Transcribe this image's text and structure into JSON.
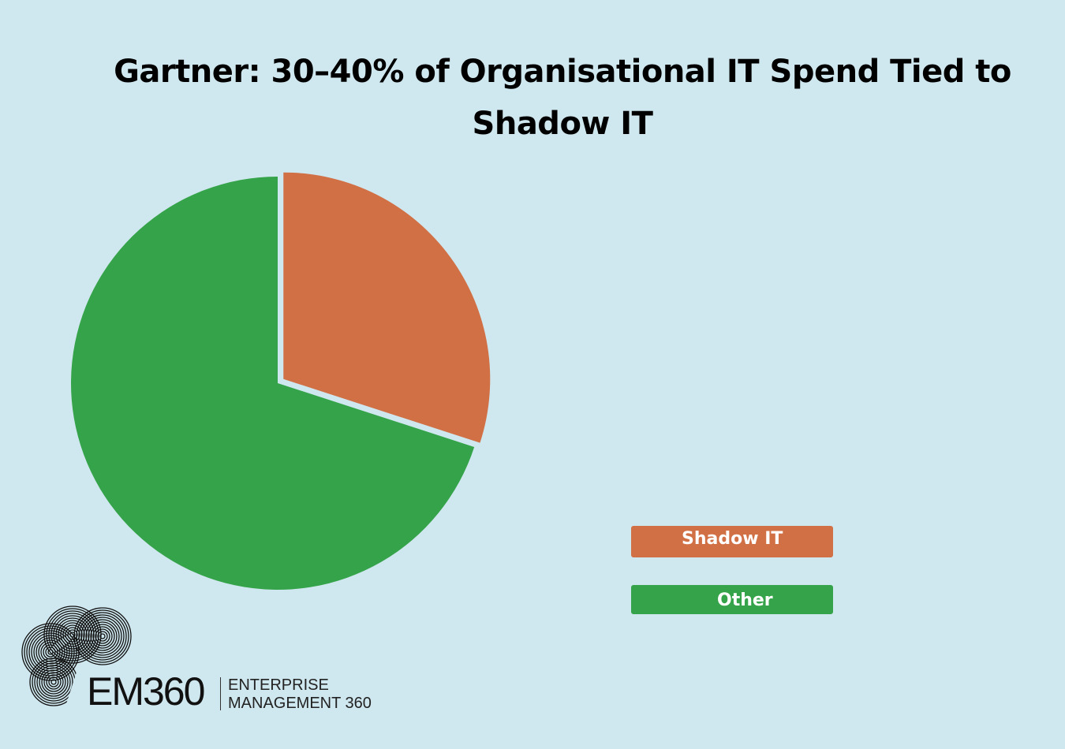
{
  "colors": {
    "background": "#cfe7ee",
    "shadow_it": "#d16f45",
    "other": "#35a349",
    "text": "#000000"
  },
  "chart_data": {
    "type": "pie",
    "title": "Gartner: 30–40% of Organisational IT Spend Tied to Shadow IT",
    "categories": [
      "Shadow IT",
      "Other"
    ],
    "values": [
      30,
      70
    ],
    "colors": [
      "#d16f45",
      "#35a349"
    ],
    "legend_position": "bottom-right",
    "exploded_slice": "Shadow IT"
  },
  "legend": {
    "items": [
      {
        "label": "Shadow IT"
      },
      {
        "label": "Other"
      }
    ]
  },
  "logo": {
    "name": "EM360",
    "line1": "ENTERPRISE",
    "line2": "MANAGEMENT 360"
  }
}
